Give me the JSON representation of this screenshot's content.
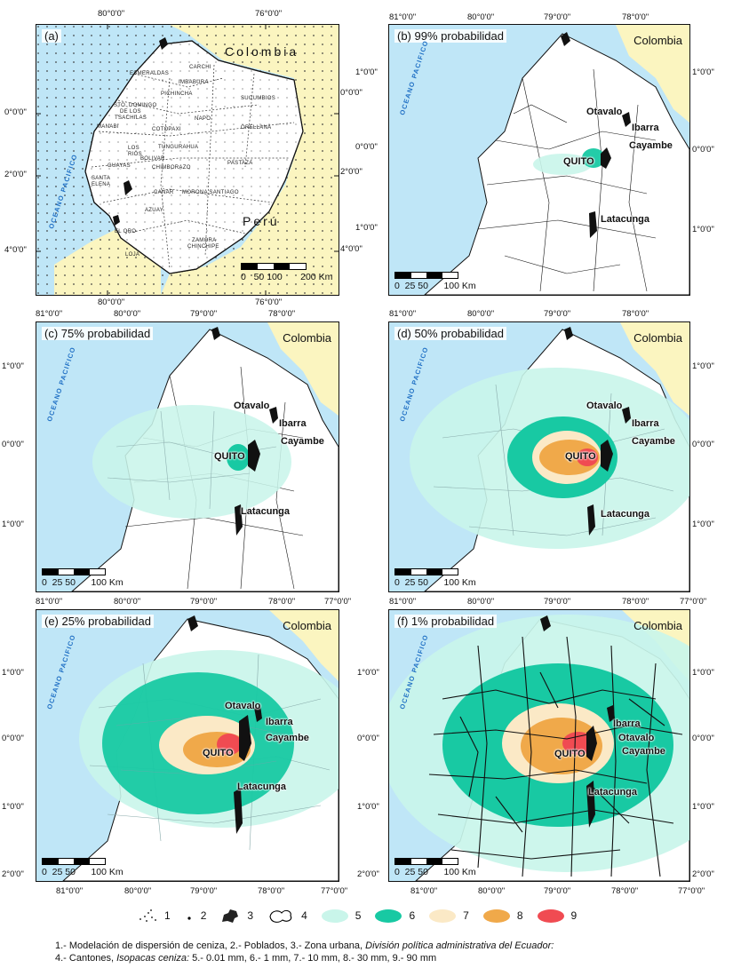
{
  "panels": {
    "a": {
      "label": "(a)",
      "country_north": "Colombia",
      "country_south": "Perú",
      "ocean": "OCEANO PACIFICO",
      "scale": "0   50 100       200 Km",
      "provinces": [
        "CARCHI",
        "ESMERALDAS",
        "IMBABURA",
        "PICHINCHA",
        "SUCUMBIOS",
        "STO. DOMINGO",
        "DE LOS",
        "TSACHILAS",
        "NAPO",
        "MANABI",
        "COTOPAXI",
        "ORELLANA",
        "TUNGURAHUA",
        "LOS",
        "RIOS",
        "BOLIVAR",
        "PASTAZA",
        "CHIMBORAZO",
        "GUAYAS",
        "SANTA",
        "ELENA",
        "CAÑAR",
        "MORONA SANTIAGO",
        "AZUAY",
        "EL ORO",
        "ZAMORA",
        "CHINCHIPE",
        "LOJA"
      ],
      "top_coords": [
        "80°0'0\"",
        "76°0'0\""
      ],
      "bottom_coords": [
        "80°0'0\"",
        "76°0'0\""
      ],
      "left_coords": [
        "0°0'0\"",
        "2°0'0\"",
        "4°0'0\""
      ],
      "right_coords": [
        "0°0'0\"",
        "2°0'0\"",
        "4°0'0\""
      ]
    },
    "b": {
      "label": "(b) 99% probabilidad",
      "country": "Colombia",
      "scale": "0  25 50      100 Km"
    },
    "c": {
      "label": "(c) 75% probabilidad",
      "country": "Colombia",
      "scale": "0  25 50      100 Km"
    },
    "d": {
      "label": "(d) 50% probabilidad",
      "country": "Colombia",
      "scale": "0  25 50      100 Km"
    },
    "e": {
      "label": "(e) 25% probabilidad",
      "country": "Colombia",
      "scale": "0  25 50      100 Km"
    },
    "f": {
      "label": "(f) 1% probabilidad",
      "country": "Colombia",
      "scale": "0  25 50      100 Km"
    }
  },
  "cities": {
    "otavalo": "Otavalo",
    "ibarra": "Ibarra",
    "cayambe": "Cayambe",
    "quito": "QUITO",
    "latacunga": "Latacunga"
  },
  "coords": {
    "lon": [
      "81°0'0\"",
      "80°0'0\"",
      "79°0'0\"",
      "78°0'0\"",
      "77°0'0\""
    ],
    "lat_b_left": [
      "1°0'0\"",
      "0°0'0\"",
      "1°0'0\""
    ],
    "lat_cd": [
      "1°0'0\"",
      "0°0'0\"",
      "1°0'0\""
    ],
    "lat_ef": [
      "1°0'0\"",
      "0°0'0\"",
      "1°0'0\"",
      "2°0'0\""
    ]
  },
  "legend": [
    {
      "num": "1",
      "kind": "dots"
    },
    {
      "num": "2",
      "kind": "dot"
    },
    {
      "num": "3",
      "kind": "urban"
    },
    {
      "num": "4",
      "kind": "outline"
    },
    {
      "num": "5",
      "kind": "fill",
      "color": "#c9f5ea"
    },
    {
      "num": "6",
      "kind": "fill",
      "color": "#18c9a3"
    },
    {
      "num": "7",
      "kind": "fill",
      "color": "#fbe9c6"
    },
    {
      "num": "8",
      "kind": "fill",
      "color": "#f0a94a"
    },
    {
      "num": "9",
      "kind": "fill",
      "color": "#f04b52"
    }
  ],
  "footnote": {
    "line1_a": "1.- Modelación de dispersión de ceniza, 2.- Poblados, 3.- Zona urbana, ",
    "line1_b": "División política administrativa del Ecuador:",
    "line2_a": "4.- Cantones, ",
    "line2_b": "Isopacas ceniza:",
    "line2_c": " 5.- 0.01 mm, 6.- 1 mm, 7.- 10 mm, 8.- 30 mm, 9.- 90 mm"
  },
  "colors": {
    "ocean": "#bfe6f7",
    "colombia": "#fbf5c0",
    "iso5": "#c9f5ea",
    "iso6": "#18c9a3",
    "iso7": "#fbe9c6",
    "iso8": "#f0a94a",
    "iso9": "#f04b52"
  }
}
